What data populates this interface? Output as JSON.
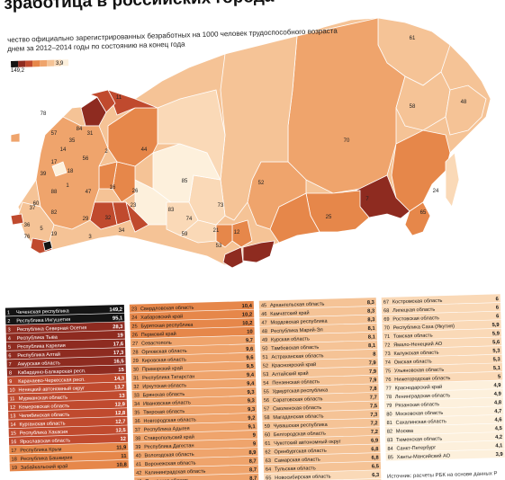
{
  "header": {
    "title": "зработица в российских города",
    "subtitle_line1": "чество официально зарегистрированных безработных на 1000 человек трудоспособного возраста",
    "subtitle_line2": "днем за 2012–2014 годы по состоянию на конец года",
    "legend_min": "149,2",
    "legend_max": "3,9"
  },
  "colors": {
    "c1": "#141414",
    "c2": "#8e2b20",
    "c3": "#c04a2e",
    "c4": "#e6874a",
    "c5": "#efa46c",
    "c6": "#f5c396",
    "c7": "#fad9b7",
    "c8": "#fdf0dc"
  },
  "map_labels": [
    "61",
    "48",
    "78",
    "11",
    "58",
    "70",
    "84",
    "57",
    "35",
    "31",
    "14",
    "44",
    "17",
    "39",
    "18",
    "56",
    "52",
    "2",
    "85",
    "1",
    "88",
    "47",
    "16",
    "26",
    "24",
    "7",
    "23",
    "60",
    "83",
    "74",
    "53",
    "25",
    "59",
    "21",
    "12",
    "37",
    "36",
    "5",
    "29",
    "65",
    "76",
    "32",
    "3",
    "34",
    "73",
    "82",
    "19"
  ],
  "tables": [
    {
      "column": 1,
      "rows": [
        {
          "rank": "1",
          "name": "Чеченская республика",
          "value": "149,2"
        },
        {
          "rank": "2",
          "name": "Республика Ингушетия",
          "value": "95,1"
        },
        {
          "rank": "3",
          "name": "Республика Северная Осетия",
          "value": "28,3"
        },
        {
          "rank": "4",
          "name": "Республика Тыва",
          "value": "19"
        },
        {
          "rank": "5",
          "name": "Республика Карелия",
          "value": "17,6"
        },
        {
          "rank": "6",
          "name": "Республика Алтай",
          "value": "17,3"
        },
        {
          "rank": "7",
          "name": "Амурская область",
          "value": "16,5"
        },
        {
          "rank": "8",
          "name": "Кабардино-Балкарская респ.",
          "value": "15"
        },
        {
          "rank": "9",
          "name": "Карачаево-Черкесская респ.",
          "value": "14,3"
        },
        {
          "rank": "10",
          "name": "Ненецкий автономный округ",
          "value": "13,7"
        },
        {
          "rank": "11",
          "name": "Мурманская область",
          "value": "13"
        },
        {
          "rank": "12",
          "name": "Кемеровская область",
          "value": "12,9"
        },
        {
          "rank": "13",
          "name": "Челябинская область",
          "value": "12,8"
        },
        {
          "rank": "14",
          "name": "Курганская область",
          "value": "12,7"
        },
        {
          "rank": "15",
          "name": "Республика Хакасия",
          "value": "12,5"
        },
        {
          "rank": "16",
          "name": "Ярославская область",
          "value": "12"
        },
        {
          "rank": "17",
          "name": "Республика Крым",
          "value": "11,9"
        },
        {
          "rank": "18",
          "name": "Республика Башкирия",
          "value": "11"
        },
        {
          "rank": "19",
          "name": "Забайкальский край",
          "value": "10,8"
        }
      ]
    },
    {
      "column": 2,
      "rows": [
        {
          "rank": "23",
          "name": "Свердловская область",
          "value": "10,4"
        },
        {
          "rank": "24",
          "name": "Хабаровский край",
          "value": "10,2"
        },
        {
          "rank": "25",
          "name": "Бурятская республика",
          "value": "10,2"
        },
        {
          "rank": "26",
          "name": "Пермский край",
          "value": "10"
        },
        {
          "rank": "27",
          "name": "Севастополь",
          "value": "9,7"
        },
        {
          "rank": "28",
          "name": "Орловская область",
          "value": "9,6"
        },
        {
          "rank": "29",
          "name": "Кировская область",
          "value": "9,6"
        },
        {
          "rank": "30",
          "name": "Приморский край",
          "value": "9,5"
        },
        {
          "rank": "31",
          "name": "Республика Татарстан",
          "value": "9,4"
        },
        {
          "rank": "32",
          "name": "Иркутская область",
          "value": "9,4"
        },
        {
          "rank": "33",
          "name": "Брянская область",
          "value": "9,3"
        },
        {
          "rank": "34",
          "name": "Ивановская область",
          "value": "9,3"
        },
        {
          "rank": "35",
          "name": "Тверская область",
          "value": "9,3"
        },
        {
          "rank": "36",
          "name": "Новгородская область",
          "value": "9,2"
        },
        {
          "rank": "37",
          "name": "Республика Адыгея",
          "value": "9,1"
        },
        {
          "rank": "38",
          "name": "Ставропольский край",
          "value": "9"
        },
        {
          "rank": "39",
          "name": "Республика Дагестан",
          "value": "9"
        },
        {
          "rank": "40",
          "name": "Вологодская область",
          "value": "8,9"
        },
        {
          "rank": "41",
          "name": "Воронежская область",
          "value": "8,7"
        },
        {
          "rank": "42",
          "name": "Калининградская область",
          "value": "8,7"
        },
        {
          "rank": "43",
          "name": "Псковская область",
          "value": "8,7"
        },
        {
          "rank": "44",
          "name": "Республика Коми",
          "value": "8,5"
        }
      ]
    },
    {
      "column": 3,
      "rows": [
        {
          "rank": "45",
          "name": "Архангельская область",
          "value": "8,3"
        },
        {
          "rank": "46",
          "name": "Камчатский край",
          "value": "8,3"
        },
        {
          "rank": "47",
          "name": "Мордовская республика",
          "value": "8,3"
        },
        {
          "rank": "48",
          "name": "Республика Марий-Эл",
          "value": "8,1"
        },
        {
          "rank": "49",
          "name": "Курская область",
          "value": "8,1"
        },
        {
          "rank": "50",
          "name": "Тамбовская область",
          "value": "8,1"
        },
        {
          "rank": "51",
          "name": "Астраханская область",
          "value": "8"
        },
        {
          "rank": "52",
          "name": "Красноярский край",
          "value": "7,9"
        },
        {
          "rank": "53",
          "name": "Алтайский край",
          "value": "7,9"
        },
        {
          "rank": "54",
          "name": "Пензенская область",
          "value": "7,9"
        },
        {
          "rank": "55",
          "name": "Удмуртская республика",
          "value": "7,8"
        },
        {
          "rank": "56",
          "name": "Саратовская область",
          "value": "7,7"
        },
        {
          "rank": "57",
          "name": "Смоленская область",
          "value": "7,5"
        },
        {
          "rank": "58",
          "name": "Магаданская область",
          "value": "7,3"
        },
        {
          "rank": "59",
          "name": "Чувашская республика",
          "value": "7,2"
        },
        {
          "rank": "60",
          "name": "Белгородская область",
          "value": "7,2"
        },
        {
          "rank": "61",
          "name": "Чукотский автономный округ",
          "value": "6,9"
        },
        {
          "rank": "62",
          "name": "Оренбургская область",
          "value": "6,8"
        },
        {
          "rank": "63",
          "name": "Самарская область",
          "value": "6,8"
        },
        {
          "rank": "64",
          "name": "Тульская область",
          "value": "6,5"
        },
        {
          "rank": "65",
          "name": "Новосибирская область",
          "value": "6,3"
        },
        {
          "rank": "66",
          "name": "Еврейская автономная обл.",
          "value": "6,2"
        }
      ]
    },
    {
      "column": 4,
      "rows": [
        {
          "rank": "67",
          "name": "Костромская область",
          "value": "6"
        },
        {
          "rank": "68",
          "name": "Липецкая область",
          "value": "6"
        },
        {
          "rank": "69",
          "name": "Ростовская область",
          "value": "6"
        },
        {
          "rank": "70",
          "name": "Республика Саха (Якутия)",
          "value": "5,9"
        },
        {
          "rank": "71",
          "name": "Томская область",
          "value": "5,9"
        },
        {
          "rank": "72",
          "name": "Ямало-Ненецкий АО",
          "value": "5,6"
        },
        {
          "rank": "73",
          "name": "Калужская область",
          "value": "5,3"
        },
        {
          "rank": "74",
          "name": "Омская область",
          "value": "5,3"
        },
        {
          "rank": "75",
          "name": "Ульяновская область",
          "value": "5,1"
        },
        {
          "rank": "76",
          "name": "Нижегородская область",
          "value": "5"
        },
        {
          "rank": "77",
          "name": "Краснодарский край",
          "value": "4,9"
        },
        {
          "rank": "78",
          "name": "Ленинградская область",
          "value": "4,9"
        },
        {
          "rank": "79",
          "name": "Рязанская область",
          "value": "4,8"
        },
        {
          "rank": "80",
          "name": "Московская область",
          "value": "4,7"
        },
        {
          "rank": "81",
          "name": "Сахалинская область",
          "value": "4,6"
        },
        {
          "rank": "82",
          "name": "Москва",
          "value": "4,5"
        },
        {
          "rank": "83",
          "name": "Тюменская область",
          "value": "4,2"
        },
        {
          "rank": "84",
          "name": "Санкт-Петербург",
          "value": "4,1"
        },
        {
          "rank": "85",
          "name": "Ханты-Мансийский АО",
          "value": "3,9"
        }
      ]
    }
  ],
  "footer": "Источник: расчеты РБК на основе данных Р"
}
